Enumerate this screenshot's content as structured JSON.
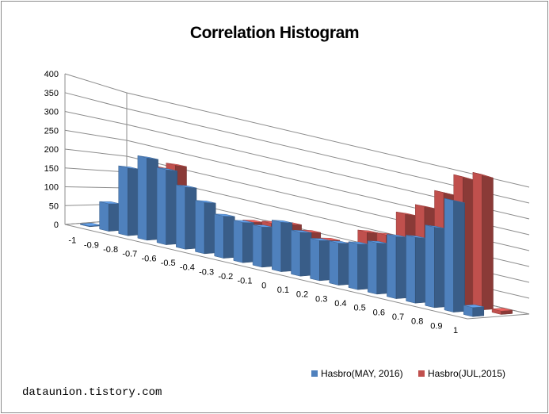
{
  "chart_data": {
    "type": "bar",
    "title": "Correlation Histogram",
    "categories": [
      "-1",
      "-0.9",
      "-0.8",
      "-0.7",
      "-0.6",
      "-0.5",
      "-0.4",
      "-0.3",
      "-0.2",
      "-0.1",
      "0",
      "0.1",
      "0.2",
      "0.3",
      "0.4",
      "0.5",
      "0.6",
      "0.7",
      "0.8",
      "0.9",
      "1"
    ],
    "series": [
      {
        "name": "Hasbro(MAY, 2016)",
        "color": "#4f81bd",
        "values": [
          2,
          75,
          185,
          225,
          205,
          170,
          140,
          115,
          110,
          110,
          135,
          120,
          110,
          115,
          125,
          140,
          170,
          180,
          220,
          305,
          25
        ]
      },
      {
        "name": "Hasbro(JUL,2015)",
        "color": "#c0504d",
        "values": [
          0,
          2,
          195,
          215,
          80,
          60,
          60,
          100,
          110,
          120,
          110,
          100,
          100,
          150,
          155,
          230,
          265,
          320,
          380,
          400,
          10
        ]
      }
    ],
    "ylim": [
      0,
      400
    ],
    "yticks": [
      0,
      50,
      100,
      150,
      200,
      250,
      300,
      350,
      400
    ],
    "grid": true,
    "legend": "bottom-right"
  },
  "footer": {
    "watermark": "dataunion.tistory.com"
  }
}
